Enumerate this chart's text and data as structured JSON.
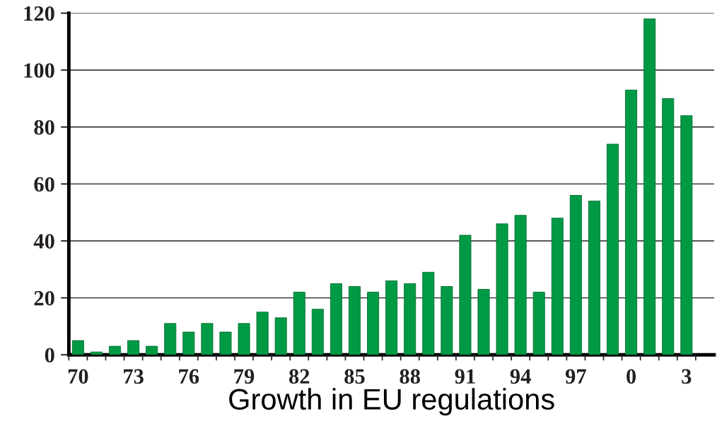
{
  "chart_data": {
    "type": "bar",
    "xlabel": "Growth in EU regulations",
    "categories": [
      "70",
      null,
      null,
      "73",
      null,
      null,
      "76",
      null,
      null,
      "79",
      null,
      null,
      "82",
      null,
      null,
      "85",
      null,
      null,
      "88",
      null,
      null,
      "91",
      null,
      null,
      "94",
      null,
      null,
      "97",
      null,
      null,
      "0",
      null,
      null,
      "3"
    ],
    "values": [
      5,
      1,
      3,
      5,
      3,
      11,
      8,
      11,
      8,
      11,
      15,
      13,
      22,
      16,
      25,
      24,
      22,
      26,
      25,
      29,
      24,
      42,
      23,
      46,
      49,
      22,
      48,
      56,
      54,
      74,
      93,
      118,
      90,
      84
    ],
    "color": "#009a44",
    "ylim": [
      0,
      120
    ],
    "yticks": [
      0,
      20,
      40,
      60,
      80,
      100,
      120
    ],
    "grid": "y",
    "legend": false
  }
}
